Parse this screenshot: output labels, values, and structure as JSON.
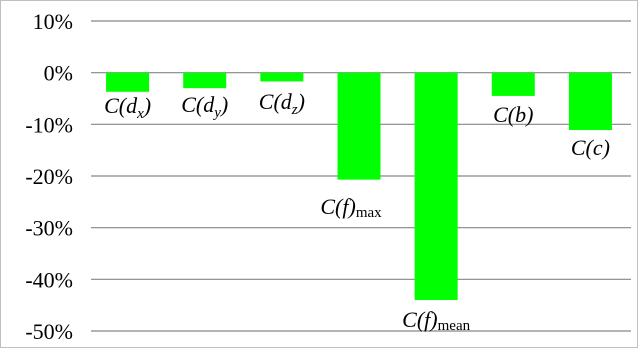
{
  "chart_data": {
    "type": "bar",
    "title": "",
    "xlabel": "",
    "ylabel": "",
    "ylim": [
      -0.5,
      0.1
    ],
    "grid": true,
    "legend": false,
    "y_ticks": [
      "10%",
      "0%",
      "-10%",
      "-20%",
      "-30%",
      "-40%",
      "-50%"
    ],
    "categories": [
      {
        "base": "C(",
        "sub": "x",
        "sub_italic": true,
        "mid": "d",
        "tail": ")"
      },
      {
        "base": "C(",
        "sub": "y",
        "sub_italic": true,
        "mid": "d",
        "tail": ")"
      },
      {
        "base": "C(",
        "sub": "z",
        "sub_italic": true,
        "mid": "d",
        "tail": ")"
      },
      {
        "base": "C(f)",
        "sub": "max",
        "sub_italic": false,
        "mid": "",
        "tail": ""
      },
      {
        "base": "C(f)",
        "sub": "mean",
        "sub_italic": false,
        "mid": "",
        "tail": ""
      },
      {
        "base": "C(b)",
        "sub": "",
        "sub_italic": false,
        "mid": "",
        "tail": ""
      },
      {
        "base": "C(c)",
        "sub": "",
        "sub_italic": false,
        "mid": "",
        "tail": ""
      }
    ],
    "values": [
      -0.037,
      -0.03,
      -0.017,
      -0.207,
      -0.44,
      -0.045,
      -0.111
    ],
    "bar_color": "#00ff00",
    "grid_color": "#868686"
  }
}
